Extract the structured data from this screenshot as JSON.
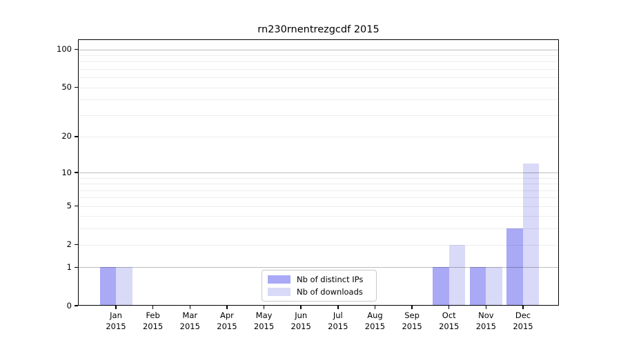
{
  "chart_data": {
    "type": "bar",
    "title": "rn230rnentrezgcdf 2015",
    "y_scale": "log1p",
    "ylim": [
      0,
      120
    ],
    "yticks": [
      0,
      1,
      2,
      5,
      10,
      20,
      50,
      100
    ],
    "minor_gridlines": [
      2,
      3,
      4,
      5,
      6,
      7,
      8,
      9,
      20,
      30,
      40,
      50,
      60,
      70,
      80,
      90
    ],
    "major_gridlines": [
      1,
      10,
      100
    ],
    "months": [
      "Jan",
      "Feb",
      "Mar",
      "Apr",
      "May",
      "Jun",
      "Jul",
      "Aug",
      "Sep",
      "Oct",
      "Nov",
      "Dec"
    ],
    "year": "2015",
    "series": [
      {
        "name": "Nb of distinct IPs",
        "color": "#a9a9f6",
        "values": [
          1,
          0,
          0,
          0,
          0,
          0,
          0,
          0,
          0,
          1,
          1,
          3
        ]
      },
      {
        "name": "Nb of downloads",
        "color": "#d9d9f8",
        "values": [
          1,
          0,
          0,
          0,
          0,
          0,
          0,
          0,
          0,
          2,
          1,
          12
        ]
      }
    ],
    "legend_position": "bottom-center",
    "grid": true
  }
}
